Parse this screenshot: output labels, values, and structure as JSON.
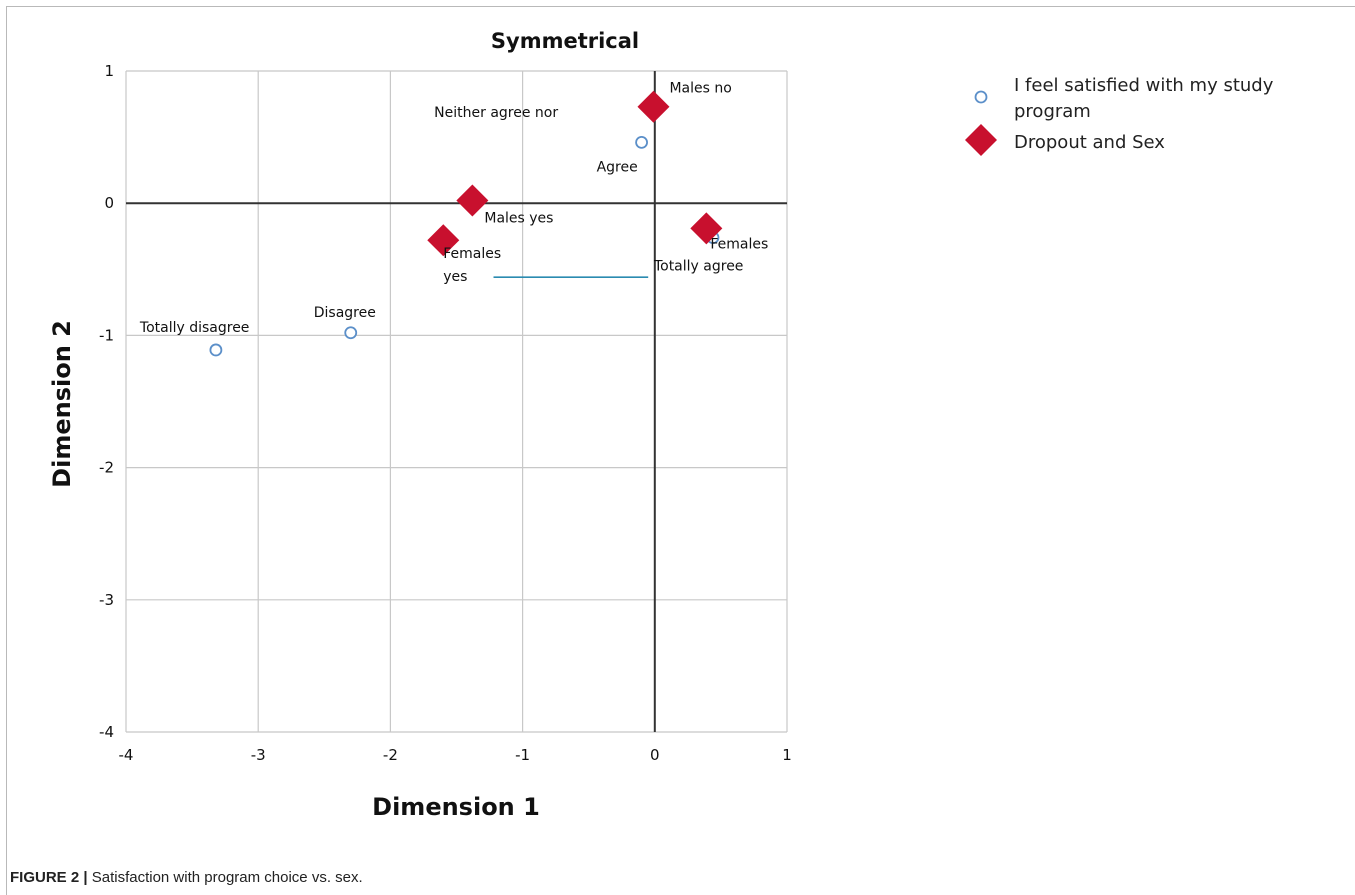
{
  "caption": {
    "label": "FIGURE 2 |",
    "text": "Satisfaction with program choice vs. sex."
  },
  "chart_data": {
    "type": "scatter",
    "title": "Symmetrical",
    "xlabel": "Dimension 1",
    "ylabel": "Dimension 2",
    "xlim": [
      -4,
      1
    ],
    "ylim": [
      -4,
      1
    ],
    "xticks": [
      -4,
      -3,
      -2,
      -1,
      0,
      1
    ],
    "yticks": [
      1,
      0,
      -1,
      -2,
      -3,
      -4
    ],
    "grid": true,
    "legend_position": "right",
    "series": [
      {
        "name": "I feel satisfied with my study program",
        "legend_lines": [
          "I feel satisfied with my study",
          "program"
        ],
        "marker": "circle",
        "color": "#5b8fc9",
        "points": [
          {
            "x": -3.32,
            "y": -1.11,
            "label": "Totally disagree"
          },
          {
            "x": -2.3,
            "y": -0.98,
            "label": "Disagree"
          },
          {
            "x": -1.2,
            "y": -0.56,
            "label": "Neither agree nor"
          },
          {
            "x": -0.1,
            "y": 0.46,
            "label": "Agree"
          },
          {
            "x": 0.44,
            "y": -0.26,
            "label": "Totally agree"
          }
        ]
      },
      {
        "name": "Dropout and Sex",
        "marker": "diamond",
        "color": "#c8102e",
        "points": [
          {
            "x": -0.01,
            "y": 0.73,
            "label": "Males no"
          },
          {
            "x": -1.38,
            "y": 0.02,
            "label": "Males yes"
          },
          {
            "x": -1.6,
            "y": -0.28,
            "label": "Females yes"
          },
          {
            "x": 0.39,
            "y": -0.19,
            "label": "Females"
          }
        ]
      }
    ]
  }
}
